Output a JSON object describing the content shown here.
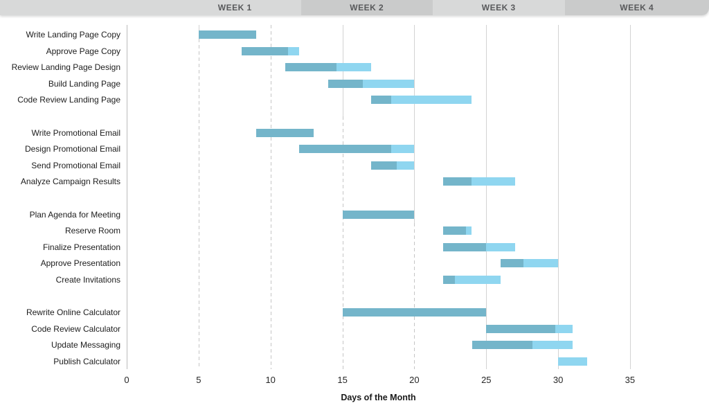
{
  "chart_data": {
    "type": "gantt",
    "title": "",
    "xlabel": "Days of the Month",
    "x_ticks": [
      0,
      5,
      10,
      15,
      20,
      25,
      30,
      35
    ],
    "xlim": [
      0,
      40
    ],
    "grid": "vertical-every-5-days",
    "legend": "none",
    "week_headers": [
      "WEEK 1",
      "WEEK 2",
      "WEEK 3",
      "WEEK 4"
    ],
    "colors": {
      "complete": "#74b5ca",
      "remaining": "#8fd6f0",
      "header_light": "#d8d9d9",
      "header_dark": "#cacbcb",
      "header_text": "#58595b"
    },
    "groups": [
      {
        "tasks": [
          {
            "label": "Write Landing Page Copy",
            "start": 5,
            "end": 9,
            "percent_complete": 100
          },
          {
            "label": "Approve Page Copy",
            "start": 8,
            "end": 12,
            "percent_complete": 80
          },
          {
            "label": "Review Landing Page Design",
            "start": 11,
            "end": 17,
            "percent_complete": 60
          },
          {
            "label": "Build Landing Page",
            "start": 14,
            "end": 20,
            "percent_complete": 40
          },
          {
            "label": "Code Review Landing Page",
            "start": 17,
            "end": 24,
            "percent_complete": 20
          }
        ]
      },
      {
        "tasks": [
          {
            "label": "Write Promotional Email",
            "start": 9,
            "end": 13,
            "percent_complete": 100
          },
          {
            "label": "Design Promotional Email",
            "start": 12,
            "end": 20,
            "percent_complete": 80
          },
          {
            "label": "Send Promotional Email",
            "start": 17,
            "end": 20,
            "percent_complete": 60
          },
          {
            "label": "Analyze Campaign Results",
            "start": 22,
            "end": 27,
            "percent_complete": 40
          }
        ]
      },
      {
        "tasks": [
          {
            "label": "Plan Agenda for Meeting",
            "start": 15,
            "end": 20,
            "percent_complete": 100
          },
          {
            "label": "Reserve Room",
            "start": 22,
            "end": 24,
            "percent_complete": 80
          },
          {
            "label": "Finalize Presentation",
            "start": 22,
            "end": 27,
            "percent_complete": 60
          },
          {
            "label": "Approve Presentation",
            "start": 26,
            "end": 30,
            "percent_complete": 40
          },
          {
            "label": "Create Invitations",
            "start": 22,
            "end": 26,
            "percent_complete": 20
          }
        ]
      },
      {
        "tasks": [
          {
            "label": "Rewrite Online Calculator",
            "start": 15,
            "end": 25,
            "percent_complete": 100
          },
          {
            "label": "Code Review Calculator",
            "start": 25,
            "end": 31,
            "percent_complete": 80
          },
          {
            "label": "Update Messaging",
            "start": 24,
            "end": 31,
            "percent_complete": 60
          },
          {
            "label": "Publish Calculator",
            "start": 30,
            "end": 32,
            "percent_complete": 0
          }
        ]
      }
    ]
  }
}
